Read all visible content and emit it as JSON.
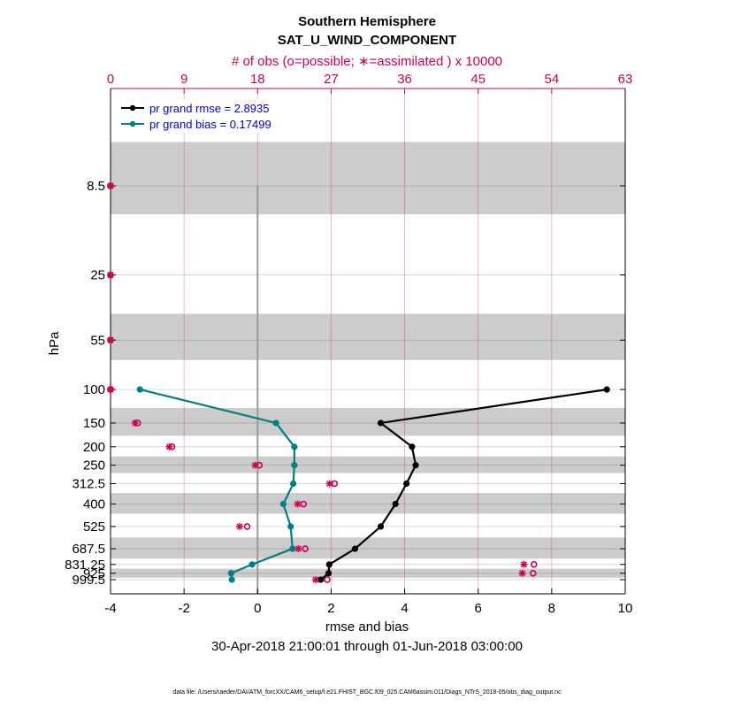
{
  "chart_data": {
    "type": "line",
    "title": "Southern Hemisphere",
    "subtitle": "SAT_U_WIND_COMPONENT",
    "top_axis_label": "# of obs (o=possible; ∗=assimilated ) x 10000",
    "xlabel": "rmse and bias",
    "ylabel": "hPa",
    "date_range": "30-Apr-2018 21:00:01 through 01-Jun-2018 03:00:00",
    "footer": "data file: /Users/raeder/DAI/ATM_forcXX/CAM6_setup/f.e21.FHIST_BGC.f09_025.CAM6assim.011/Diags_NTrS_2018-05/obs_diag_output.nc",
    "xlim": [
      -4,
      10
    ],
    "x_ticks": [
      "-4",
      "-2",
      "0",
      "2",
      "4",
      "6",
      "8",
      "10"
    ],
    "top_xlim": [
      0,
      63
    ],
    "top_ticks": [
      "0",
      "9",
      "18",
      "27",
      "36",
      "45",
      "54",
      "63"
    ],
    "pressure_levels": [
      8.5,
      25,
      55,
      100,
      150,
      200,
      250,
      312.5,
      400,
      525,
      687.5,
      831.25,
      925,
      999.5
    ],
    "pressure_labels": [
      "8.5",
      "25",
      "55",
      "100",
      "150",
      "200",
      "250",
      "312.5",
      "400",
      "525",
      "687.5",
      "831.25",
      "925",
      "999.5"
    ],
    "shaded_bands": [
      [
        5,
        12
      ],
      [
        40,
        70
      ],
      [
        125,
        175
      ],
      [
        225,
        275
      ],
      [
        350,
        450
      ],
      [
        600,
        775
      ],
      [
        875,
        975
      ]
    ],
    "legend": {
      "rmse_label": "pr grand rmse = 2.8935",
      "bias_label": "pr grand bias = 0.17499",
      "position": "top-left"
    },
    "series": [
      {
        "name": "pr grand rmse = 2.8935",
        "color": "#000000",
        "levels": [
          100,
          150,
          200,
          250,
          312.5,
          400,
          525,
          687.5,
          831.25,
          925,
          999.5
        ],
        "values": [
          9.5,
          3.35,
          4.2,
          4.3,
          4.05,
          3.75,
          3.35,
          2.65,
          1.95,
          1.93,
          1.72
        ]
      },
      {
        "name": "pr grand bias = 0.17499",
        "color": "#008080",
        "levels": [
          100,
          150,
          200,
          250,
          312.5,
          400,
          525,
          687.5,
          831.25,
          925,
          999.5
        ],
        "values": [
          -3.2,
          0.5,
          1.0,
          1.0,
          0.97,
          0.7,
          0.9,
          0.95,
          -0.15,
          -0.72,
          -0.7
        ]
      }
    ],
    "obs_counts": {
      "color": "#cc0055",
      "levels": [
        8.5,
        25,
        55,
        100,
        150,
        200,
        250,
        312.5,
        400,
        525,
        687.5,
        831.25,
        925,
        999.5
      ],
      "possible": [
        0,
        0,
        0,
        0,
        3,
        7.2,
        17.9,
        27.1,
        23.3,
        16.4,
        23.5,
        51.5,
        51.4,
        26.2
      ],
      "assimilated": [
        0,
        0,
        0,
        0,
        3,
        7.2,
        17.7,
        26.8,
        22.9,
        15.8,
        23.0,
        50.6,
        50.4,
        25.1
      ]
    }
  }
}
